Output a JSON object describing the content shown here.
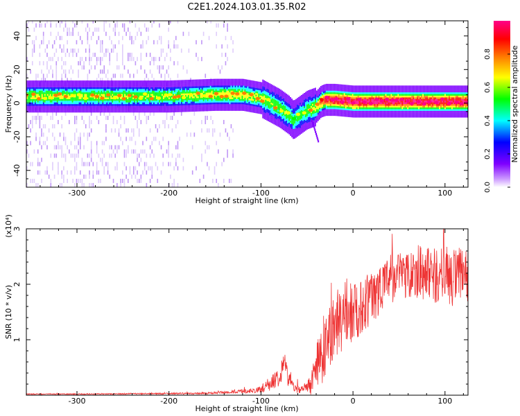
{
  "title": "C2E1.2024.103.01.35.R02",
  "chart_data": [
    {
      "type": "heatmap",
      "title": "C2E1.2024.103.01.35.R02",
      "xlabel": "Height of straight line (km)",
      "ylabel": "Frequency (Hz)",
      "xlim": [
        -355,
        125
      ],
      "ylim": [
        -50,
        49
      ],
      "x_ticks": [
        -300,
        -200,
        -100,
        0,
        100
      ],
      "x_tick_labels": [
        "-300",
        "-200",
        "-100",
        "0",
        "100"
      ],
      "y_ticks": [
        -40,
        -20,
        0,
        20,
        40
      ],
      "y_tick_labels": [
        "-40",
        "-20",
        "0",
        "20",
        "40"
      ],
      "colorbar": {
        "label": "Normalized spectral amplitude",
        "range": [
          0,
          1
        ],
        "ticks": [
          0.0,
          0.2,
          0.4,
          0.6,
          0.8
        ],
        "tick_labels": [
          "0.0",
          "0.2",
          "0.4",
          "0.6",
          "0.8"
        ],
        "colormap": "rainbow",
        "colors": [
          "#ffffff",
          "#cc99ff",
          "#7f00ff",
          "#0000ff",
          "#00ffff",
          "#00ff00",
          "#ffff00",
          "#ff7f00",
          "#ff0000",
          "#ff0088"
        ]
      },
      "ridge": {
        "description_points_x": [
          -355,
          -300,
          -250,
          -200,
          -150,
          -120,
          -100,
          -90,
          -80,
          -70,
          -65,
          -60,
          -55,
          -50,
          -45,
          -40,
          -35,
          -30,
          -20,
          0,
          20,
          50,
          80,
          100,
          125
        ],
        "frequency_hz": [
          4,
          4,
          4,
          4,
          5,
          5,
          3,
          0,
          -3,
          -7,
          -10,
          -8,
          -6,
          -4,
          -3,
          -2,
          1,
          2,
          2,
          1,
          1,
          1,
          1,
          1,
          1
        ],
        "peak_amplitude": [
          0.55,
          0.55,
          0.55,
          0.5,
          0.6,
          0.6,
          0.55,
          0.5,
          0.5,
          0.5,
          0.45,
          0.45,
          0.45,
          0.5,
          0.55,
          0.6,
          0.75,
          0.85,
          0.9,
          0.9,
          0.92,
          0.92,
          0.9,
          0.9,
          0.9
        ]
      }
    },
    {
      "type": "line",
      "xlabel": "Height of straight line (km)",
      "ylabel": "SNR (10 * v/v)",
      "y_multiplier": "(x10⁴)",
      "xlim": [
        -355,
        125
      ],
      "ylim": [
        0,
        3
      ],
      "x_ticks": [
        -300,
        -200,
        -100,
        0,
        100
      ],
      "x_tick_labels": [
        "-300",
        "-200",
        "-100",
        "0",
        "100"
      ],
      "y_ticks": [
        1,
        2,
        3
      ],
      "y_tick_labels": [
        "1",
        "2",
        "3"
      ],
      "color": "#ee3333",
      "series": [
        {
          "x": [
            -355,
            -300,
            -250,
            -200,
            -170,
            -150,
            -130,
            -110,
            -100,
            -90,
            -80,
            -75,
            -70,
            -65,
            -60,
            -55,
            -50,
            -45,
            -40,
            -35,
            -30,
            -25,
            -20,
            -15,
            -10,
            -5,
            0,
            10,
            20,
            30,
            40,
            50,
            60,
            70,
            80,
            90,
            100,
            110,
            120,
            125
          ],
          "y": [
            0.02,
            0.02,
            0.025,
            0.03,
            0.03,
            0.04,
            0.06,
            0.08,
            0.1,
            0.2,
            0.35,
            0.6,
            0.3,
            0.15,
            0.12,
            0.1,
            0.12,
            0.25,
            0.45,
            0.7,
            0.95,
            1.1,
            1.25,
            1.3,
            1.35,
            1.45,
            1.5,
            1.6,
            1.75,
            1.95,
            2.1,
            2.15,
            2.2,
            2.25,
            2.2,
            2.15,
            2.2,
            2.1,
            2.15,
            2.1
          ],
          "spread": [
            0.01,
            0.01,
            0.01,
            0.015,
            0.015,
            0.02,
            0.03,
            0.04,
            0.06,
            0.12,
            0.18,
            0.25,
            0.15,
            0.1,
            0.08,
            0.07,
            0.1,
            0.25,
            0.4,
            0.55,
            0.6,
            0.6,
            0.6,
            0.55,
            0.55,
            0.55,
            0.55,
            0.5,
            0.5,
            0.45,
            0.45,
            0.45,
            0.45,
            0.5,
            0.5,
            0.5,
            0.5,
            0.55,
            0.55,
            0.55
          ]
        }
      ]
    }
  ]
}
